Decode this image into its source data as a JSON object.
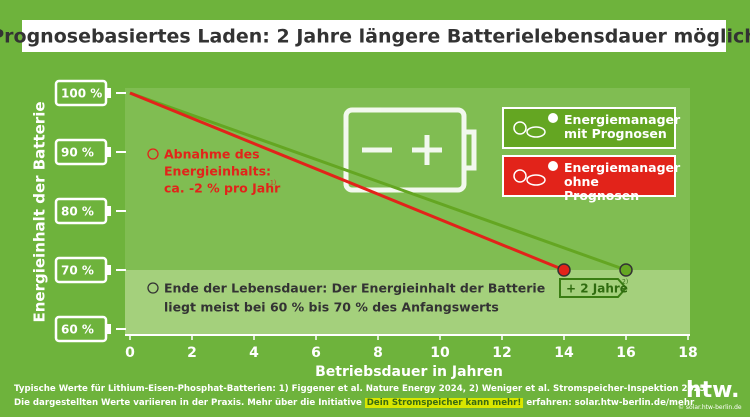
{
  "chart_data": {
    "type": "line",
    "title": "Prognosebasiertes Laden: 2 Jahre längere Batterielebensdauer möglich",
    "x_label": "Betriebsdauer in Jahren",
    "y_label": "Energieinhalt der Batterie",
    "xlim": [
      0,
      18
    ],
    "xticks": [
      0,
      2,
      4,
      6,
      8,
      10,
      12,
      14,
      16,
      18
    ],
    "ylim": [
      60,
      100
    ],
    "yticks": [
      {
        "value": 60,
        "label": "60 %"
      },
      {
        "value": 70,
        "label": "70 %"
      },
      {
        "value": 80,
        "label": "80 %"
      },
      {
        "value": 90,
        "label": "90 %"
      },
      {
        "value": 100,
        "label": "100 %"
      }
    ],
    "series": [
      {
        "name": "Energiemanager mit Prognosen",
        "color": "#64a622",
        "x": [
          0,
          16
        ],
        "values": [
          100,
          70
        ]
      },
      {
        "name": "Energiemanager ohne Prognosen",
        "color": "#e2231a",
        "x": [
          0,
          14
        ],
        "values": [
          100,
          70
        ]
      }
    ],
    "annotations": {
      "decline": [
        "Abnahme des",
        "Energieinhalts:",
        "ca. -2 % pro Jahr"
      ],
      "decline_note": "1)",
      "end_of_life": [
        "Ende der Lebensdauer: Der Energieinhalt der Batterie",
        "liegt meist bei 60 % bis 70 % des Anfangswerts"
      ],
      "gain": "+ 2 Jahre",
      "gain_note": "2)"
    },
    "footnotes": {
      "line1": "Typische Werte für Lithium-Eisen-Phosphat-Batterien: 1) Figgener et al. Nature Energy 2024, 2) Weniger et al. Stromspeicher-Inspektion 2025",
      "line2_pre": "Die dargestellten Werte variieren in der Praxis. Mehr über die Initiative",
      "line2_highlight": "Dein Stromspeicher kann mehr!",
      "line2_post": "erfahren: solar.htw-berlin.de/mehr"
    },
    "logo": "htw.",
    "copyright": "© solar.htw-berlin.de"
  }
}
